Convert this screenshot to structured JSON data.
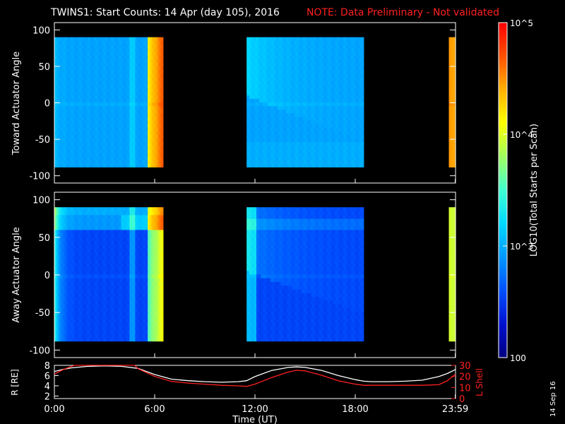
{
  "title": {
    "main": "TWINS1: Start Counts: 14 Apr (day 105), 2016",
    "note": "NOTE: Data Preliminary - Not validated"
  },
  "date_stamp": "14 Sep 16",
  "colors": {
    "background": "#000000",
    "foreground": "#ffffff",
    "note": "#ff2020",
    "r_line": "#ffffff",
    "lshell_line": "#ff2020"
  },
  "chart_data": [
    {
      "type": "heatmap",
      "name": "toward",
      "ylabel": "Toward Actuator Angle",
      "ylim": [
        -110,
        110
      ],
      "yticks": [
        100,
        50,
        0,
        -50,
        -100
      ],
      "xlim": [
        0,
        24
      ],
      "data_blocks_ut": [
        [
          0,
          6.5
        ],
        [
          11.5,
          18.5
        ],
        [
          23.6,
          24
        ]
      ],
      "data_angle_range": [
        -88,
        90
      ],
      "baseline_log_counts": 2.95,
      "profile": "toward"
    },
    {
      "type": "heatmap",
      "name": "away",
      "ylabel": "Away Actuator Angle",
      "ylim": [
        -110,
        110
      ],
      "yticks": [
        100,
        50,
        0,
        -50,
        -100
      ],
      "xlim": [
        0,
        24
      ],
      "data_blocks_ut": [
        [
          0,
          6.5
        ],
        [
          11.5,
          18.5
        ],
        [
          23.6,
          24
        ]
      ],
      "data_angle_range": [
        -88,
        90
      ],
      "baseline_log_counts": 2.55,
      "profile": "away"
    },
    {
      "type": "line",
      "name": "orbit",
      "ylabel_left": "R [RE]",
      "ylabel_right": "L Shell",
      "xlabel": "Time (UT)",
      "xlim": [
        0,
        24
      ],
      "xticks": [
        {
          "value": 0,
          "label": "0:00"
        },
        {
          "value": 6,
          "label": "6:00"
        },
        {
          "value": 12,
          "label": "12:00"
        },
        {
          "value": 18,
          "label": "18:00"
        },
        {
          "value": 23.983,
          "label": "23:59"
        }
      ],
      "ylim_left": [
        1.5,
        8
      ],
      "yticks_left": [
        8,
        6,
        4,
        2
      ],
      "ylim_right": [
        0,
        30
      ],
      "yticks_right": [
        30,
        20,
        10,
        0
      ],
      "series": [
        {
          "axis": "left",
          "x": [
            0,
            0.5,
            1,
            2,
            3,
            4,
            5,
            6,
            7,
            8,
            9,
            10,
            11,
            11.5,
            12,
            13,
            14,
            14.5,
            15,
            16,
            17,
            18,
            18.5,
            19,
            20,
            21,
            22,
            23,
            23.5,
            24
          ],
          "values": [
            6.8,
            7.2,
            7.5,
            7.8,
            7.9,
            7.8,
            7.4,
            6.2,
            5.3,
            5.0,
            4.8,
            4.7,
            4.8,
            5.0,
            5.8,
            7.0,
            7.6,
            7.7,
            7.6,
            7.0,
            6.0,
            5.2,
            4.9,
            4.8,
            4.8,
            4.9,
            5.1,
            5.8,
            6.4,
            7.2
          ]
        },
        {
          "axis": "right",
          "x": [
            0,
            0.5,
            1,
            1.2,
            4.8,
            5,
            6,
            7,
            8,
            9,
            10,
            11,
            11.5,
            12,
            13,
            14,
            14.5,
            15,
            16,
            17,
            18,
            18.5,
            19,
            20,
            21,
            22,
            23,
            23.5,
            24
          ],
          "values": [
            22,
            26,
            29,
            30,
            30,
            27,
            20,
            15.5,
            14,
            13,
            12,
            11.5,
            11,
            13,
            19,
            24,
            25.5,
            25,
            21,
            16,
            13,
            12,
            12,
            12,
            12,
            12,
            12.5,
            16,
            22
          ]
        }
      ]
    },
    {
      "type": "heatmap",
      "name": "colorbar",
      "label": "LOG10(Total Starts per Scan)",
      "scale": "log",
      "range": [
        100,
        100000
      ],
      "ticks": [
        {
          "value": 100000,
          "label": "10^5"
        },
        {
          "value": 10000,
          "label": "10^4"
        },
        {
          "value": 1000,
          "label": "10^3"
        },
        {
          "value": 100,
          "label": "100"
        }
      ],
      "colormap": [
        "#000080",
        "#0010d0",
        "#0050ff",
        "#0098ff",
        "#00d8ff",
        "#40ffd0",
        "#a0ff60",
        "#ffff00",
        "#ffb000",
        "#ff5000",
        "#ff0000"
      ]
    }
  ]
}
